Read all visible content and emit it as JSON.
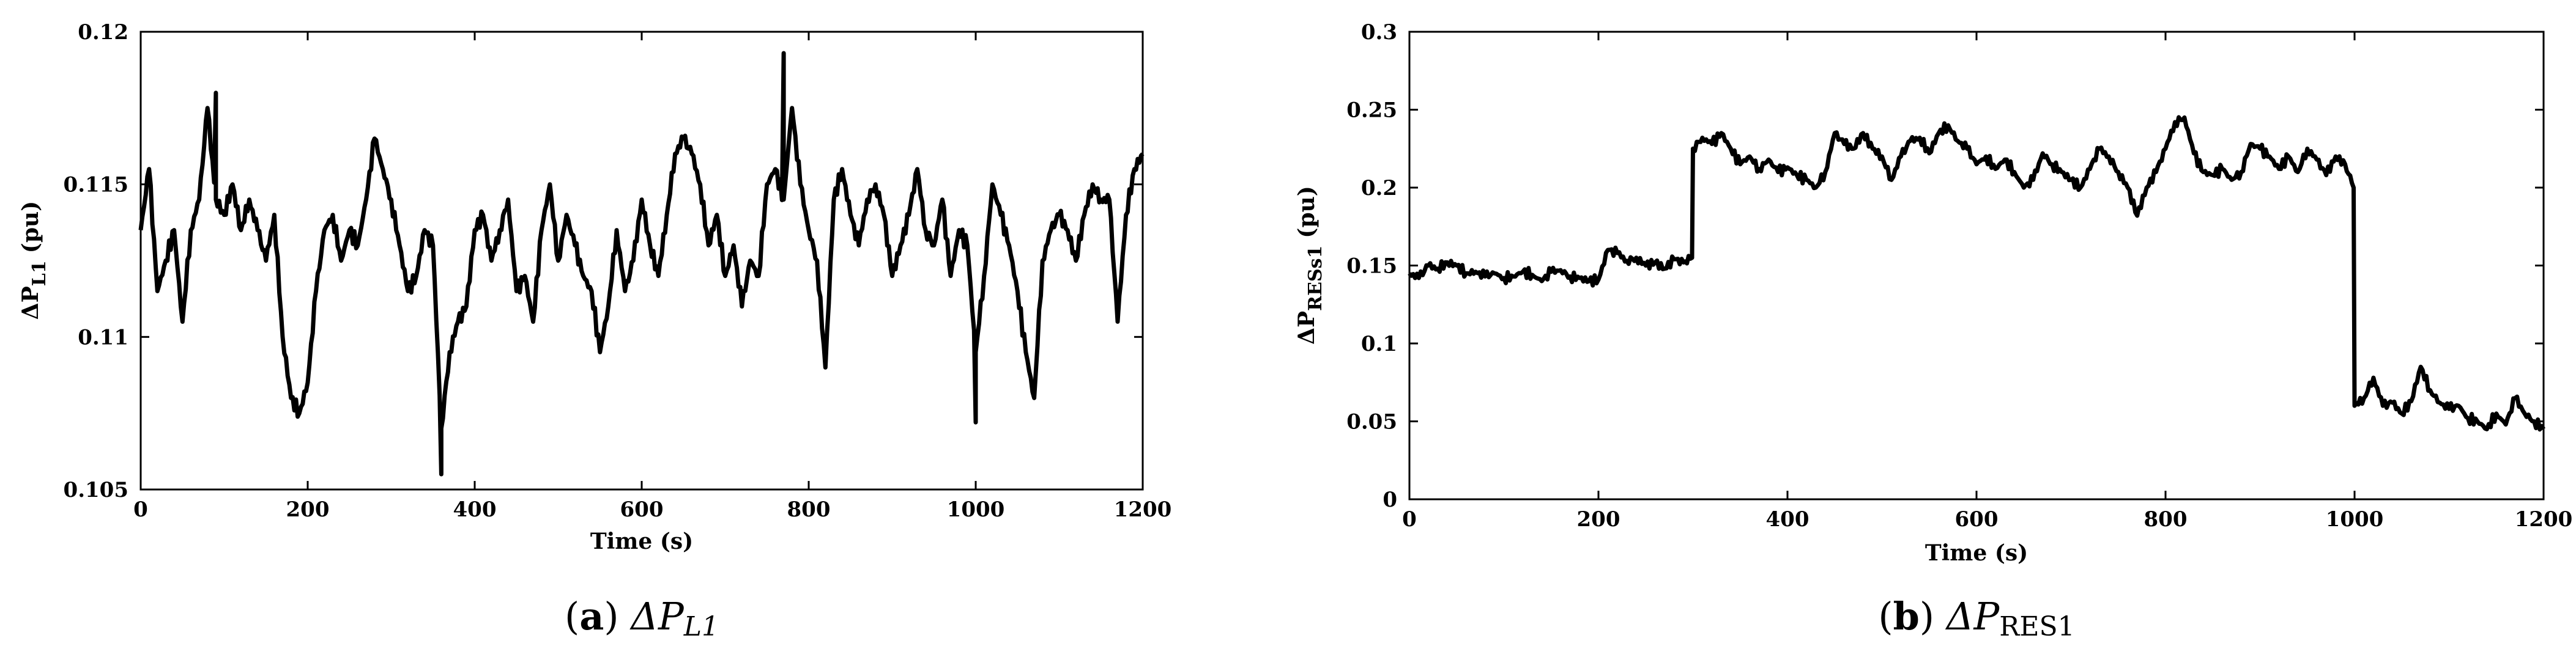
{
  "captions": [
    {
      "label": "(a)",
      "letter": "a",
      "symbol": "ΔP",
      "subscript": "L1"
    },
    {
      "label": "(b)",
      "letter": "b",
      "symbol": "ΔP",
      "subscript": "RES1"
    }
  ],
  "chart_data": [
    {
      "type": "line",
      "xlabel": "Time (s)",
      "ylabel": "ΔP",
      "ylabel_sub": "L1",
      "ylabel_unit": "(pu)",
      "xlim": [
        0,
        1200
      ],
      "ylim": [
        0.105,
        0.12
      ],
      "xticks": [
        0,
        200,
        400,
        600,
        800,
        1000,
        1200
      ],
      "yticks": [
        0.105,
        0.11,
        0.115,
        0.12
      ],
      "ytick_labels": [
        "0.105",
        "0.11",
        "0.115",
        "0.12"
      ],
      "grid": false,
      "line_color": "#000000",
      "x": [
        0,
        10,
        20,
        30,
        40,
        50,
        60,
        70,
        80,
        90,
        100,
        110,
        120,
        130,
        140,
        150,
        160,
        170,
        180,
        190,
        200,
        210,
        220,
        230,
        240,
        250,
        260,
        270,
        280,
        290,
        300,
        310,
        320,
        330,
        340,
        350,
        360,
        370,
        380,
        390,
        400,
        410,
        420,
        430,
        440,
        450,
        460,
        470,
        480,
        490,
        500,
        510,
        520,
        530,
        540,
        550,
        560,
        570,
        580,
        590,
        600,
        610,
        620,
        630,
        640,
        650,
        660,
        670,
        680,
        690,
        700,
        710,
        720,
        730,
        740,
        750,
        760,
        770,
        780,
        790,
        800,
        810,
        820,
        830,
        840,
        850,
        860,
        870,
        880,
        890,
        900,
        910,
        920,
        930,
        940,
        950,
        960,
        970,
        980,
        990,
        1000,
        1010,
        1020,
        1030,
        1040,
        1050,
        1060,
        1070,
        1080,
        1090,
        1100,
        1110,
        1120,
        1130,
        1140,
        1150,
        1160,
        1170,
        1180,
        1190,
        1200
      ],
      "values": [
        0.1135,
        0.1155,
        0.1115,
        0.1125,
        0.1135,
        0.1105,
        0.1135,
        0.1145,
        0.1175,
        0.1145,
        0.114,
        0.115,
        0.1135,
        0.1145,
        0.1135,
        0.1125,
        0.114,
        0.11,
        0.108,
        0.1075,
        0.1085,
        0.1115,
        0.1135,
        0.114,
        0.1125,
        0.1135,
        0.113,
        0.1145,
        0.1165,
        0.1155,
        0.1145,
        0.113,
        0.1115,
        0.112,
        0.1135,
        0.113,
        0.107,
        0.1095,
        0.1105,
        0.111,
        0.1135,
        0.114,
        0.1125,
        0.1135,
        0.1145,
        0.1115,
        0.112,
        0.1105,
        0.1135,
        0.115,
        0.1125,
        0.114,
        0.113,
        0.112,
        0.1115,
        0.1095,
        0.111,
        0.1135,
        0.1115,
        0.1125,
        0.1145,
        0.113,
        0.112,
        0.114,
        0.116,
        0.1165,
        0.116,
        0.115,
        0.113,
        0.114,
        0.112,
        0.113,
        0.111,
        0.1125,
        0.112,
        0.115,
        0.1155,
        0.1145,
        0.1175,
        0.115,
        0.1135,
        0.1125,
        0.109,
        0.1145,
        0.1155,
        0.114,
        0.113,
        0.1145,
        0.115,
        0.114,
        0.112,
        0.113,
        0.114,
        0.1155,
        0.1135,
        0.113,
        0.1145,
        0.112,
        0.1135,
        0.113,
        0.1095,
        0.112,
        0.115,
        0.114,
        0.113,
        0.1115,
        0.1095,
        0.108,
        0.1125,
        0.1135,
        0.114,
        0.1135,
        0.1125,
        0.114,
        0.115,
        0.1145,
        0.1145,
        0.1105,
        0.114,
        0.1155,
        0.116
      ],
      "annotations": [
        {
          "x": 90,
          "value": 0.118
        },
        {
          "x": 360,
          "value": 0.1055
        },
        {
          "x": 770,
          "value": 0.1193
        },
        {
          "x": 1000,
          "value": 0.1072
        }
      ]
    },
    {
      "type": "line",
      "xlabel": "Time (s)",
      "ylabel": "ΔP",
      "ylabel_sub": "RESs1",
      "ylabel_unit": "(pu)",
      "xlim": [
        0,
        1200
      ],
      "ylim": [
        0,
        0.3
      ],
      "xticks": [
        0,
        200,
        400,
        600,
        800,
        1000,
        1200
      ],
      "yticks": [
        0,
        0.05,
        0.1,
        0.15,
        0.2,
        0.25,
        0.3
      ],
      "ytick_labels": [
        "0",
        "0.05",
        "0.1",
        "0.15",
        "0.2",
        "0.25",
        "0.3"
      ],
      "grid": false,
      "line_color": "#000000",
      "x": [
        0,
        10,
        20,
        30,
        40,
        50,
        60,
        70,
        80,
        90,
        100,
        110,
        120,
        130,
        140,
        150,
        160,
        170,
        180,
        190,
        200,
        210,
        220,
        230,
        240,
        250,
        260,
        270,
        280,
        290,
        299,
        300,
        310,
        320,
        330,
        340,
        350,
        360,
        370,
        380,
        390,
        400,
        410,
        420,
        430,
        440,
        450,
        460,
        470,
        480,
        490,
        500,
        510,
        520,
        530,
        540,
        550,
        560,
        570,
        580,
        590,
        600,
        610,
        620,
        630,
        640,
        650,
        660,
        670,
        680,
        690,
        700,
        710,
        720,
        730,
        740,
        750,
        760,
        770,
        780,
        790,
        800,
        810,
        820,
        830,
        840,
        850,
        860,
        870,
        880,
        890,
        900,
        910,
        920,
        930,
        940,
        950,
        960,
        970,
        980,
        990,
        999,
        1000,
        1010,
        1020,
        1030,
        1040,
        1050,
        1060,
        1070,
        1080,
        1090,
        1100,
        1110,
        1120,
        1130,
        1140,
        1150,
        1160,
        1170,
        1180,
        1190,
        1200
      ],
      "values": [
        0.145,
        0.142,
        0.15,
        0.148,
        0.152,
        0.15,
        0.145,
        0.146,
        0.143,
        0.145,
        0.142,
        0.143,
        0.146,
        0.144,
        0.14,
        0.146,
        0.147,
        0.143,
        0.142,
        0.14,
        0.141,
        0.16,
        0.158,
        0.153,
        0.155,
        0.15,
        0.152,
        0.148,
        0.154,
        0.152,
        0.155,
        0.225,
        0.232,
        0.228,
        0.235,
        0.225,
        0.215,
        0.22,
        0.212,
        0.218,
        0.21,
        0.213,
        0.208,
        0.205,
        0.2,
        0.21,
        0.235,
        0.228,
        0.225,
        0.235,
        0.225,
        0.22,
        0.205,
        0.22,
        0.23,
        0.232,
        0.222,
        0.235,
        0.24,
        0.23,
        0.225,
        0.215,
        0.22,
        0.212,
        0.218,
        0.21,
        0.2,
        0.205,
        0.222,
        0.215,
        0.21,
        0.205,
        0.2,
        0.212,
        0.225,
        0.22,
        0.21,
        0.2,
        0.182,
        0.2,
        0.21,
        0.225,
        0.242,
        0.245,
        0.222,
        0.21,
        0.208,
        0.212,
        0.205,
        0.21,
        0.228,
        0.225,
        0.22,
        0.212,
        0.22,
        0.21,
        0.225,
        0.218,
        0.208,
        0.22,
        0.215,
        0.2,
        0.06,
        0.065,
        0.078,
        0.06,
        0.062,
        0.055,
        0.063,
        0.085,
        0.07,
        0.062,
        0.058,
        0.06,
        0.052,
        0.05,
        0.045,
        0.055,
        0.048,
        0.065,
        0.055,
        0.05,
        0.045
      ]
    }
  ]
}
